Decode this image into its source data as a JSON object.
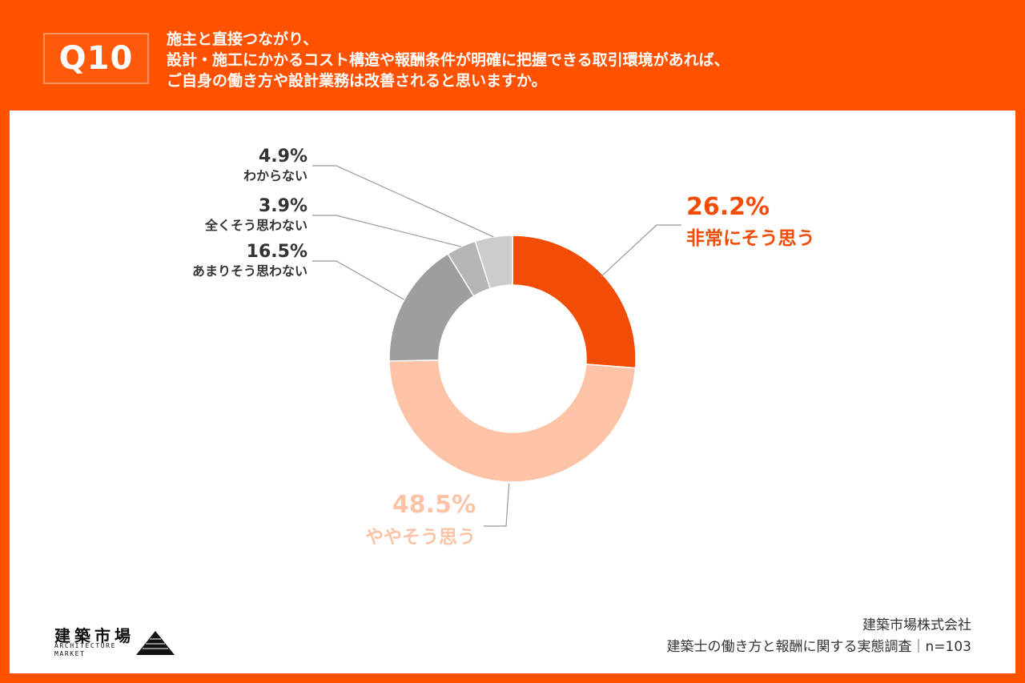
{
  "header": {
    "badge": "Q10",
    "question_lines": [
      "施主と直接つながり、",
      "設計・施工にかかるコスト構造や報酬条件が明確に把握できる取引環境があれば、",
      "ご自身の働き方や設計業務は改善されると思いますか。"
    ]
  },
  "chart_data": {
    "type": "pie",
    "donut": true,
    "categories": [
      "非常にそう思う",
      "ややそう思う",
      "あまりそう思わない",
      "全くそう思わない",
      "わからない"
    ],
    "values": [
      26.2,
      48.5,
      16.5,
      3.9,
      4.9
    ],
    "value_labels": [
      "26.2%",
      "48.5%",
      "16.5%",
      "3.9%",
      "4.9%"
    ],
    "colors": [
      "#f24c06",
      "#fcc3a6",
      "#9e9e9e",
      "#b5b5b5",
      "#cccccc"
    ],
    "label_colors": [
      "#f24c06",
      "#fcc3a6",
      "#333333",
      "#333333",
      "#333333"
    ]
  },
  "footer": {
    "company": "建築市場株式会社",
    "survey": "建築士の働き方と報酬に関する実態調査｜n=103",
    "logo_kanji": "建築市場",
    "logo_en_1": "ARCHITECTURE",
    "logo_en_2": "MARKET"
  }
}
